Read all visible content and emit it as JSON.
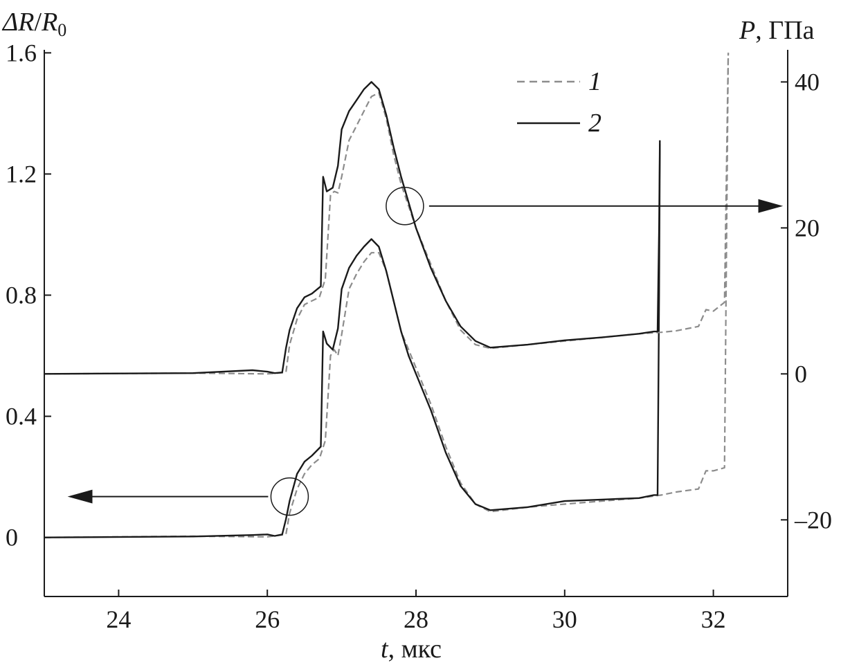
{
  "chart_data": {
    "type": "line",
    "xlabel_var": "t",
    "xlabel_unit": ", мкс",
    "ylabel_left_var1": "ΔR",
    "ylabel_left_sep": "/",
    "ylabel_left_var2": "R",
    "ylabel_left_sub": "0",
    "ylabel_right_var": "P",
    "ylabel_right_unit": ", ГПа",
    "xlim": [
      23,
      33
    ],
    "ylim_left": [
      -0.195,
      1.61
    ],
    "ylim_right": [
      -30.5,
      44.4
    ],
    "x_ticks": [
      24,
      26,
      28,
      30,
      32
    ],
    "x_tick_labels": [
      "24",
      "26",
      "28",
      "30",
      "32"
    ],
    "y_left_ticks": [
      0,
      0.4,
      0.8,
      1.2,
      1.6
    ],
    "y_left_tick_labels": [
      "0",
      "0.4",
      "0.8",
      "1.2",
      "1.6"
    ],
    "y_right_ticks": [
      -20,
      0,
      20,
      40
    ],
    "y_right_tick_labels": [
      "–20",
      "0",
      "20",
      "40"
    ],
    "legend_position": "top-center",
    "series": [
      {
        "name": "1",
        "axis": "left",
        "color": "#8c8c8c",
        "dash": "dashed",
        "x": [
          23.0,
          25.0,
          26.0,
          26.25,
          26.3,
          26.4,
          26.5,
          26.6,
          26.7,
          26.78,
          26.85,
          26.9,
          26.95,
          27.0,
          27.1,
          27.2,
          27.3,
          27.4,
          27.5,
          27.6,
          27.7,
          27.8,
          27.9,
          28.0,
          28.2,
          28.4,
          28.6,
          28.8,
          29.0,
          29.5,
          30.0,
          30.5,
          31.0,
          31.3,
          31.5,
          31.8,
          31.9,
          32.0,
          32.15,
          32.2
        ],
        "y": [
          0.0,
          0.004,
          0.002,
          0.01,
          0.08,
          0.16,
          0.21,
          0.24,
          0.26,
          0.32,
          0.6,
          0.62,
          0.6,
          0.67,
          0.82,
          0.87,
          0.91,
          0.94,
          0.94,
          0.88,
          0.78,
          0.68,
          0.62,
          0.56,
          0.44,
          0.3,
          0.18,
          0.11,
          0.085,
          0.1,
          0.11,
          0.12,
          0.13,
          0.14,
          0.15,
          0.16,
          0.22,
          0.22,
          0.23,
          1.6
        ]
      },
      {
        "name": "2",
        "axis": "left",
        "color": "#1a1a1a",
        "dash": "solid",
        "x": [
          23.0,
          25.0,
          25.8,
          26.0,
          26.1,
          26.2,
          26.25,
          26.3,
          26.4,
          26.5,
          26.6,
          26.72,
          26.75,
          26.8,
          26.88,
          26.95,
          27.0,
          27.1,
          27.2,
          27.3,
          27.4,
          27.5,
          27.6,
          27.7,
          27.8,
          27.9,
          28.0,
          28.2,
          28.4,
          28.6,
          28.8,
          29.0,
          29.5,
          30.0,
          30.5,
          31.0,
          31.2,
          31.25,
          31.27,
          31.28
        ],
        "y": [
          0.0,
          0.003,
          0.008,
          0.01,
          0.005,
          0.01,
          0.06,
          0.12,
          0.21,
          0.25,
          0.27,
          0.3,
          0.68,
          0.64,
          0.62,
          0.69,
          0.82,
          0.89,
          0.93,
          0.96,
          0.985,
          0.96,
          0.88,
          0.78,
          0.68,
          0.6,
          0.54,
          0.42,
          0.28,
          0.17,
          0.11,
          0.09,
          0.1,
          0.12,
          0.125,
          0.13,
          0.14,
          0.14,
          0.8,
          1.3
        ]
      },
      {
        "name": "1",
        "axis": "right",
        "color": "#8c8c8c",
        "dash": "dashed",
        "x": [
          23.0,
          25.0,
          26.0,
          26.25,
          26.3,
          26.4,
          26.5,
          26.6,
          26.7,
          26.78,
          26.85,
          26.9,
          26.95,
          27.0,
          27.1,
          27.2,
          27.3,
          27.4,
          27.5,
          27.6,
          27.7,
          27.8,
          27.9,
          28.0,
          28.2,
          28.4,
          28.6,
          28.8,
          29.0,
          29.5,
          30.0,
          30.5,
          31.0,
          31.3,
          31.5,
          31.8,
          31.9,
          32.0,
          32.15,
          32.2
        ],
        "y": [
          0.0,
          0.1,
          0.0,
          0.2,
          4.0,
          7.5,
          9.5,
          10.0,
          10.5,
          13.0,
          24.5,
          25.0,
          24.8,
          27.0,
          32.0,
          34.0,
          36.0,
          38.0,
          38.5,
          35.0,
          30.0,
          26.0,
          23.0,
          20.0,
          15.0,
          10.0,
          6.0,
          4.0,
          3.5,
          4.0,
          4.5,
          5.0,
          5.5,
          5.7,
          5.9,
          6.5,
          8.8,
          8.6,
          9.8,
          44.0
        ]
      },
      {
        "name": "2",
        "axis": "right",
        "color": "#1a1a1a",
        "dash": "solid",
        "x": [
          23.0,
          25.0,
          25.8,
          26.0,
          26.1,
          26.2,
          26.25,
          26.3,
          26.4,
          26.5,
          26.6,
          26.72,
          26.75,
          26.8,
          26.88,
          26.95,
          27.0,
          27.1,
          27.2,
          27.3,
          27.4,
          27.5,
          27.6,
          27.7,
          27.8,
          27.9,
          28.0,
          28.2,
          28.4,
          28.6,
          28.8,
          29.0,
          29.5,
          30.0,
          30.5,
          31.0,
          31.2,
          31.25,
          31.27,
          31.28
        ],
        "y": [
          0.0,
          0.1,
          0.5,
          0.3,
          0.1,
          0.2,
          3.5,
          6.0,
          9.0,
          10.5,
          11.0,
          12.0,
          27.0,
          25.0,
          25.5,
          28.5,
          33.5,
          36.0,
          37.5,
          39.0,
          40.0,
          39.0,
          35.5,
          31.0,
          27.0,
          23.5,
          20.0,
          14.5,
          10.0,
          6.5,
          4.5,
          3.6,
          4.0,
          4.6,
          5.0,
          5.5,
          5.8,
          5.8,
          20.0,
          32.0
        ]
      }
    ],
    "annotations": [
      {
        "x": 27.85,
        "y_right": 23.0,
        "axis": "right",
        "arrow": "right",
        "arrow_x_end": 32.9
      },
      {
        "x": 26.3,
        "y_left": 0.135,
        "axis": "left",
        "arrow": "left",
        "arrow_x_end": 23.35
      }
    ]
  }
}
